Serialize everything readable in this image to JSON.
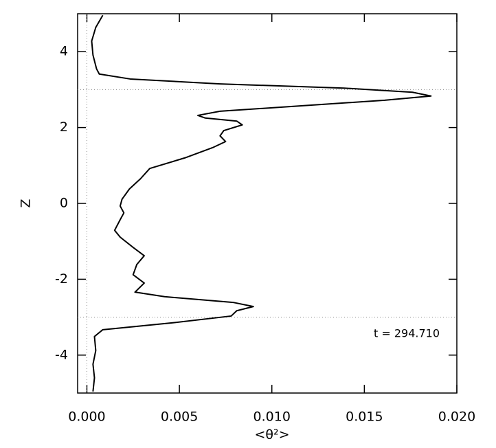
{
  "chart_data": {
    "type": "line",
    "xlabel": "<θ²>",
    "ylabel": "Z",
    "annotation": "t = 294.710",
    "color": "#000000",
    "x": [
      0.00086,
      0.00048,
      0.00026,
      0.00033,
      0.00052,
      0.00067,
      0.00234,
      0.0072,
      0.0139,
      0.0176,
      0.0186,
      0.0161,
      0.0109,
      0.0072,
      0.006,
      0.0064,
      0.0081,
      0.0084,
      0.0074,
      0.0072,
      0.0075,
      0.0068,
      0.0053,
      0.0034,
      0.0029,
      0.0023,
      0.0019,
      0.0018,
      0.002,
      0.0018,
      0.0015,
      0.0018,
      0.0025,
      0.0031,
      0.0027,
      0.0025,
      0.0031,
      0.0026,
      0.0042,
      0.0079,
      0.009,
      0.0081,
      0.0078,
      0.0046,
      0.00086,
      0.00041,
      0.00048,
      0.00033,
      0.00041,
      0.00033
    ],
    "values": [
      4.96,
      4.64,
      4.28,
      3.91,
      3.55,
      3.41,
      3.28,
      3.15,
      3.04,
      2.93,
      2.83,
      2.72,
      2.55,
      2.43,
      2.32,
      2.25,
      2.17,
      2.07,
      1.92,
      1.78,
      1.63,
      1.47,
      1.2,
      0.92,
      0.65,
      0.38,
      0.11,
      -0.07,
      -0.25,
      -0.43,
      -0.71,
      -0.89,
      -1.16,
      -1.38,
      -1.61,
      -1.88,
      -2.1,
      -2.34,
      -2.46,
      -2.61,
      -2.72,
      -2.83,
      -2.97,
      -3.15,
      -3.33,
      -3.51,
      -3.88,
      -4.24,
      -4.6,
      -4.96
    ],
    "xlim": [
      -0.0005,
      0.02
    ],
    "ylim": [
      -5,
      5
    ],
    "xticks": [
      {
        "value": 0,
        "label": "0.000"
      },
      {
        "value": 0.005,
        "label": "0.005"
      },
      {
        "value": 0.01,
        "label": "0.010"
      },
      {
        "value": 0.015,
        "label": "0.015"
      },
      {
        "value": 0.02,
        "label": "0.020"
      }
    ],
    "yticks": [
      -4,
      -2,
      0,
      2,
      4
    ],
    "reference_hlines": [
      3,
      -3
    ],
    "reference_vlines": [
      0
    ]
  }
}
